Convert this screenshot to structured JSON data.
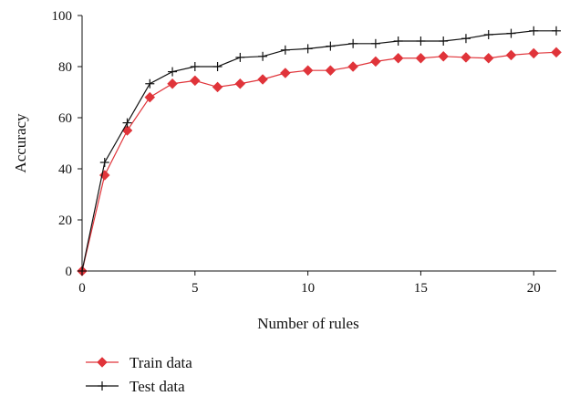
{
  "chart_data": {
    "type": "line",
    "xlabel": "Number of rules",
    "ylabel": "Accuracy",
    "xlim": [
      0,
      21
    ],
    "ylim": [
      0,
      100
    ],
    "xticks": [
      0,
      5,
      10,
      15,
      20
    ],
    "yticks": [
      0,
      20,
      40,
      60,
      80,
      100
    ],
    "grid": false,
    "legend_position": "bottom-left",
    "x": [
      0,
      1,
      2,
      3,
      4,
      5,
      6,
      7,
      8,
      9,
      10,
      11,
      12,
      13,
      14,
      15,
      16,
      17,
      18,
      19,
      20,
      21
    ],
    "series": [
      {
        "name": "Train data",
        "marker": "diamond",
        "color": "#e0343a",
        "values": [
          0,
          37.5,
          55,
          68,
          73.3,
          74.5,
          72,
          73.3,
          75,
          77.5,
          78.5,
          78.5,
          80,
          82,
          83.3,
          83.3,
          84,
          83.6,
          83.3,
          84.5,
          85.2,
          85.6
        ]
      },
      {
        "name": "Test data",
        "marker": "plus",
        "color": "#111111",
        "values": [
          0,
          42.5,
          58,
          73.3,
          78,
          80,
          80,
          83.6,
          84,
          86.5,
          87,
          88,
          89,
          89,
          90,
          90,
          90,
          91,
          92.5,
          93,
          94,
          94
        ]
      }
    ]
  }
}
